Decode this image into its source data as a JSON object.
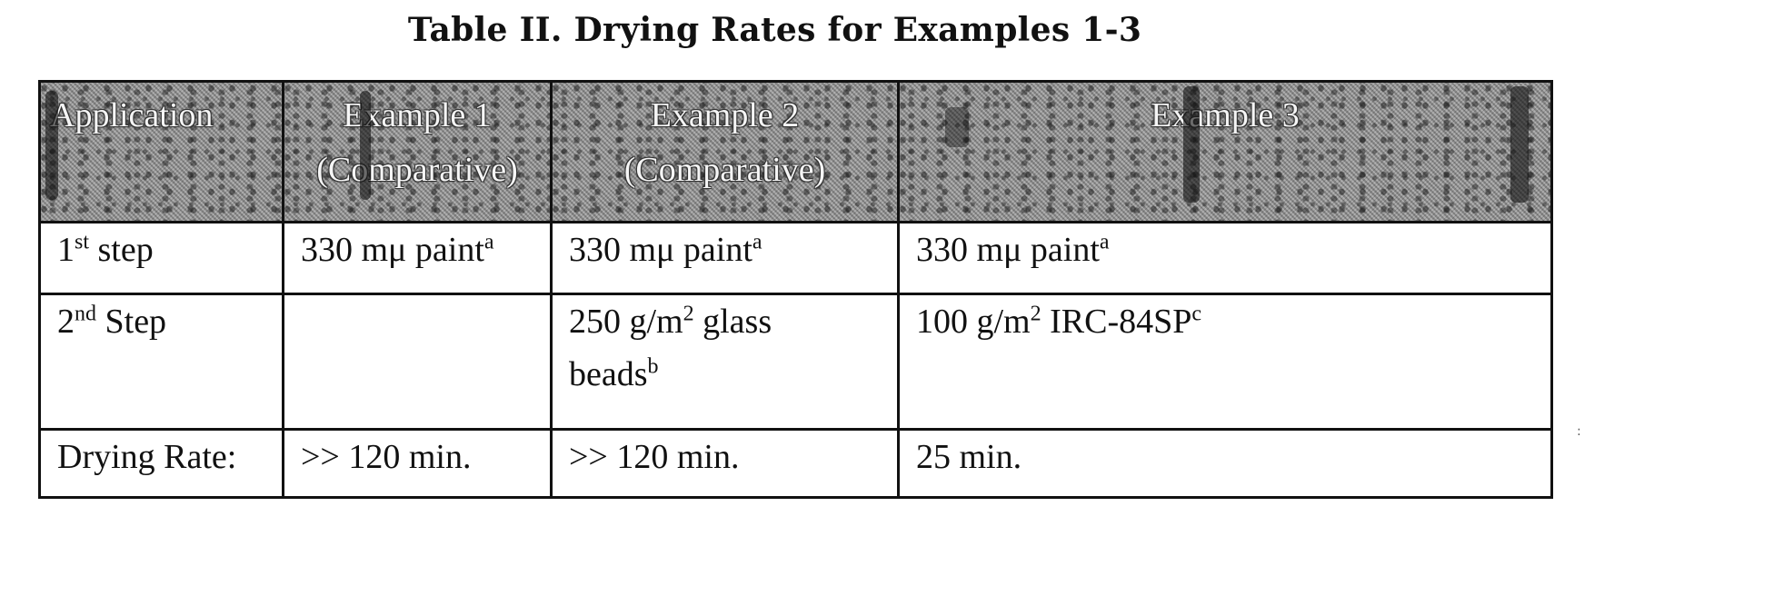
{
  "title": "Table II.  Drying Rates for Examples 1-3",
  "table": {
    "headers": [
      {
        "line1": "Application",
        "line2": ""
      },
      {
        "line1": "Example 1",
        "line2": "(Comparative)"
      },
      {
        "line1": "Example 2",
        "line2": "(Comparative)"
      },
      {
        "line1": "Example 3",
        "line2": ""
      }
    ],
    "rows": [
      {
        "label_main": "1",
        "label_sup": "st",
        "label_rest": " step",
        "cells": [
          {
            "line1": "330 mμ paint",
            "sup": "a",
            "line1_rest": "",
            "line2": ""
          },
          {
            "line1": "330 mμ paint",
            "sup": "a",
            "line1_rest": "",
            "line2": ""
          },
          {
            "line1": "330 mμ paint",
            "sup": "a",
            "line1_rest": "",
            "line2": ""
          }
        ]
      },
      {
        "label_main": "2",
        "label_sup": "nd",
        "label_rest": " Step",
        "cells": [
          {
            "line1": "",
            "sup": "",
            "line1_rest": "",
            "line2": ""
          },
          {
            "line1": "250 g/m",
            "sup": "2",
            "line1_rest": " glass",
            "line2": "beads",
            "line2_sup": "b"
          },
          {
            "line1": "100 g/m",
            "sup": "2",
            "line1_rest": " IRC-84SP",
            "line1_sup2": "c",
            "line2": ""
          }
        ]
      },
      {
        "label_main": "Drying Rate:",
        "label_sup": "",
        "label_rest": "",
        "cells": [
          {
            "line1": ">> 120 min.",
            "sup": "",
            "line1_rest": "",
            "line2": ""
          },
          {
            "line1": ">> 120 min.",
            "sup": "",
            "line1_rest": "",
            "line2": ""
          },
          {
            "line1": "25 min.",
            "sup": "",
            "line1_rest": "",
            "line2": ""
          }
        ]
      }
    ]
  },
  "side_mark": ":"
}
